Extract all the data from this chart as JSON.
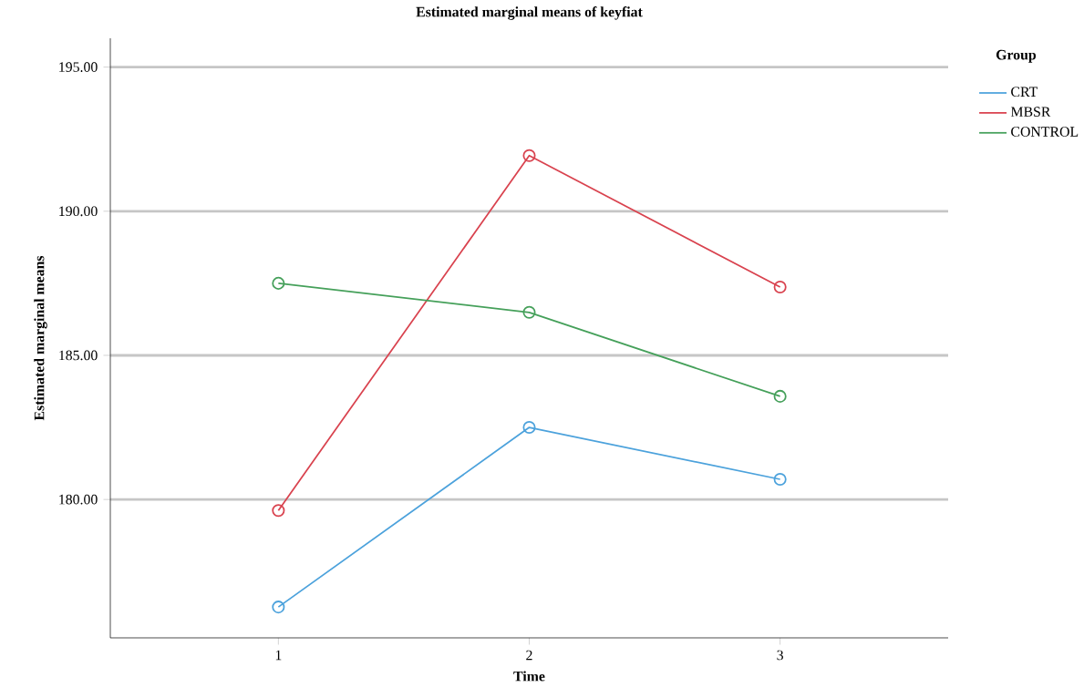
{
  "chart_data": {
    "type": "line",
    "title": "Estimated marginal means of keyfiat",
    "xlabel": "Time",
    "ylabel": "Estimated marginal means",
    "legend_title": "Group",
    "categories": [
      "1",
      "2",
      "3"
    ],
    "series": [
      {
        "name": "CRT",
        "color": "#4ca2dc",
        "values": [
          176.27,
          182.5,
          180.7
        ]
      },
      {
        "name": "MBSR",
        "color": "#d9434f",
        "values": [
          179.62,
          191.93,
          187.37
        ]
      },
      {
        "name": "CONTROL",
        "color": "#45a05a",
        "values": [
          187.5,
          186.49,
          183.58
        ]
      }
    ],
    "ylim": [
      175.2,
      196.0
    ],
    "yticks": [
      {
        "value": 180,
        "label": "180.00"
      },
      {
        "value": 185,
        "label": "185.00"
      },
      {
        "value": 190,
        "label": "190.00"
      },
      {
        "value": 195,
        "label": "195.00"
      }
    ],
    "grid": "y",
    "legend": "top right",
    "marker": "circle",
    "line_style": "solid"
  }
}
